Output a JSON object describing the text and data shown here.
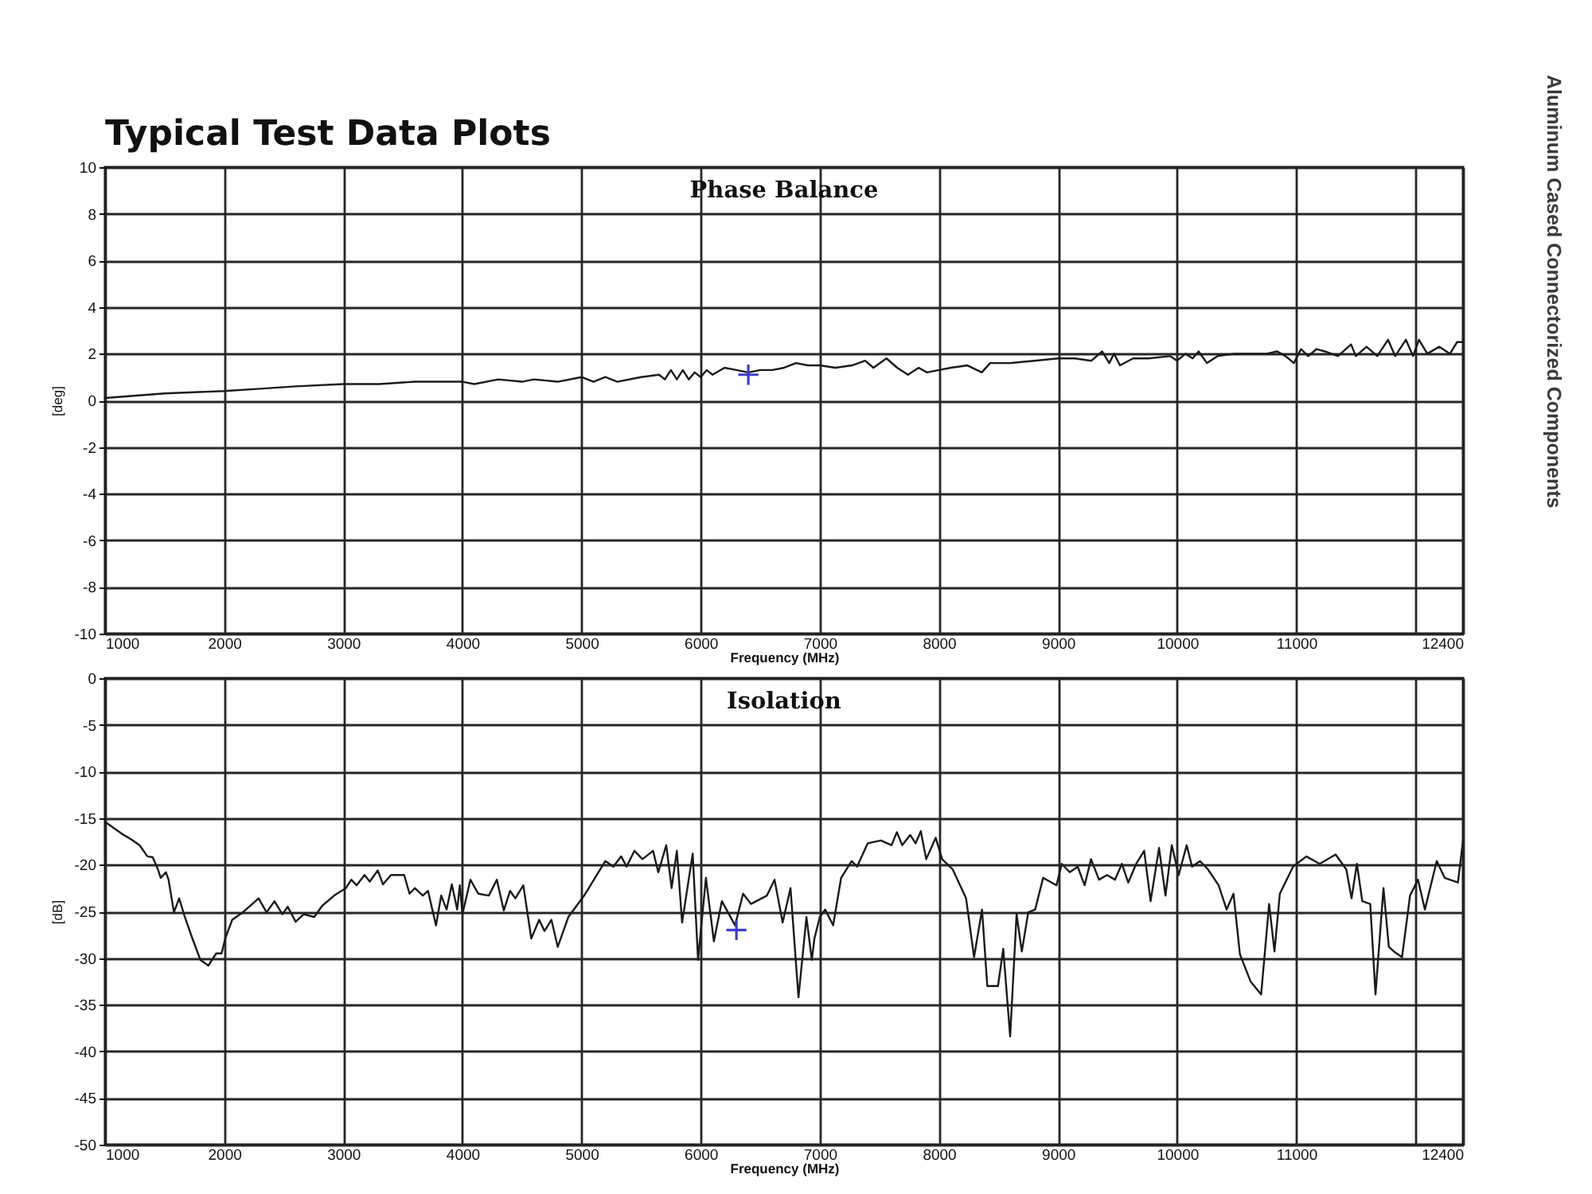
{
  "chart_data": [
    {
      "type": "line",
      "title": "Phase Balance",
      "xlabel": "Frequency (MHz)",
      "ylabel": "[deg]",
      "annotations": [
        "Typical Test Data Plots",
        "Aluminum Cased Connectorized Components"
      ],
      "xlim": [
        1000,
        12400
      ],
      "ylim": [
        -10,
        10
      ],
      "xticks": [
        1000,
        2000,
        3000,
        4000,
        5000,
        6000,
        7000,
        8000,
        9000,
        10000,
        11000,
        {
          "value": 12000,
          "label": null
        },
        12400
      ],
      "yticks": [
        -10,
        -8,
        -6,
        -4,
        -2,
        0,
        2,
        4,
        6,
        8,
        10
      ],
      "grid": true,
      "series": [
        {
          "color": "#1a1a1a",
          "x": [
            1000,
            1500,
            2000,
            2300,
            2600,
            3000,
            3300,
            3600,
            4000,
            4100,
            4300,
            4500,
            4600,
            4800,
            5000,
            5100,
            5200,
            5300,
            5500,
            5650,
            5700,
            5750,
            5800,
            5850,
            5900,
            5950,
            6000,
            6050,
            6100,
            6200,
            6300,
            6400,
            6500,
            6600,
            6700,
            6800,
            6900,
            7000,
            7130,
            7270,
            7380,
            7450,
            7560,
            7650,
            7740,
            7830,
            7900,
            8000,
            8100,
            8240,
            8360,
            8430,
            8600,
            8800,
            9000,
            9140,
            9280,
            9370,
            9430,
            9470,
            9520,
            9630,
            9760,
            9940,
            10000,
            10070,
            10130,
            10180,
            10250,
            10340,
            10480,
            10750,
            10840,
            10910,
            10980,
            11040,
            11100,
            11170,
            11240,
            11350,
            11460,
            11500,
            11590,
            11680,
            11770,
            11830,
            11920,
            11980,
            12030,
            12100,
            12200,
            12290,
            12350,
            12400
          ],
          "values": [
            0.1,
            0.3,
            0.4,
            0.5,
            0.6,
            0.7,
            0.7,
            0.8,
            0.8,
            0.7,
            0.9,
            0.8,
            0.9,
            0.8,
            1.0,
            0.8,
            1.0,
            0.8,
            1.0,
            1.1,
            0.9,
            1.3,
            0.9,
            1.3,
            0.9,
            1.2,
            1.0,
            1.3,
            1.1,
            1.4,
            1.3,
            1.2,
            1.3,
            1.3,
            1.4,
            1.6,
            1.5,
            1.5,
            1.4,
            1.5,
            1.7,
            1.4,
            1.8,
            1.4,
            1.1,
            1.4,
            1.2,
            1.3,
            1.4,
            1.5,
            1.2,
            1.6,
            1.6,
            1.7,
            1.8,
            1.8,
            1.7,
            2.1,
            1.6,
            2.0,
            1.5,
            1.8,
            1.8,
            1.9,
            1.7,
            2.0,
            1.8,
            2.1,
            1.6,
            1.9,
            2.0,
            2.0,
            2.1,
            1.9,
            1.6,
            2.2,
            1.9,
            2.2,
            2.1,
            1.9,
            2.4,
            1.9,
            2.3,
            1.9,
            2.6,
            1.9,
            2.6,
            1.9,
            2.6,
            2.0,
            2.3,
            2.0,
            2.5,
            2.5
          ]
        },
        {
          "type": "scatter",
          "marker": "cross",
          "color": "#3c3cd0",
          "x": [
            6400
          ],
          "values": [
            1.1
          ]
        }
      ]
    },
    {
      "type": "line",
      "title": "Isolation",
      "xlabel": "Frequency (MHz)",
      "ylabel": "[dB]",
      "xlim": [
        1000,
        12400
      ],
      "ylim": [
        -50,
        0
      ],
      "xticks": [
        1000,
        2000,
        3000,
        4000,
        5000,
        6000,
        7000,
        8000,
        9000,
        10000,
        11000,
        {
          "value": 12000,
          "label": null
        },
        12400
      ],
      "yticks": [
        -50,
        -45,
        -40,
        -35,
        -30,
        -25,
        -20,
        -15,
        -10,
        -5,
        0
      ],
      "grid": true,
      "series": [
        {
          "color": "#1a1a1a",
          "x": [
            1000,
            1156,
            1222,
            1289,
            1356,
            1400,
            1444,
            1467,
            1511,
            1533,
            1578,
            1622,
            1667,
            1733,
            1800,
            1867,
            1933,
            1978,
            2009,
            2067,
            2156,
            2289,
            2356,
            2422,
            2489,
            2533,
            2600,
            2667,
            2756,
            2822,
            2933,
            3022,
            3067,
            3111,
            3178,
            3222,
            3289,
            3333,
            3400,
            3511,
            3556,
            3600,
            3667,
            3711,
            3778,
            3822,
            3867,
            3911,
            3956,
            3978,
            4000,
            4067,
            4133,
            4222,
            4289,
            4347,
            4400,
            4444,
            4511,
            4578,
            4644,
            4689,
            4747,
            4800,
            4889,
            5022,
            5200,
            5267,
            5333,
            5378,
            5444,
            5511,
            5600,
            5644,
            5711,
            5756,
            5800,
            5844,
            5933,
            5978,
            6044,
            6111,
            6178,
            6289,
            6356,
            6422,
            6556,
            6620,
            6688,
            6754,
            6821,
            6888,
            6933,
            6955,
            7000,
            7045,
            7112,
            7179,
            7268,
            7313,
            7402,
            7513,
            7603,
            7647,
            7692,
            7759,
            7804,
            7848,
            7893,
            7973,
            8027,
            8116,
            8228,
            8295,
            8362,
            8406,
            8496,
            8540,
            8598,
            8652,
            8696,
            8750,
            8808,
            8875,
            8987,
            9031,
            9098,
            9165,
            9223,
            9277,
            9344,
            9411,
            9478,
            9536,
            9589,
            9656,
            9723,
            9777,
            9848,
            9902,
            9955,
            10013,
            10080,
            10125,
            10192,
            10259,
            10348,
            10415,
            10473,
            10527,
            10616,
            10705,
            10772,
            10817,
            10862,
            10973,
            11085,
            11196,
            11330,
            11420,
            11464,
            11509,
            11554,
            11621,
            11665,
            11732,
            11777,
            11821,
            11888,
            11955,
            12022,
            12080,
            12179,
            12246,
            12357,
            12400
          ],
          "values": [
            -15.4,
            -16.8,
            -17.3,
            -17.9,
            -19.1,
            -19.2,
            -20.5,
            -21.4,
            -20.8,
            -21.6,
            -25.1,
            -23.6,
            -25.5,
            -27.9,
            -30.2,
            -30.8,
            -29.5,
            -29.5,
            -27.9,
            -25.9,
            -25.1,
            -23.6,
            -25.1,
            -23.9,
            -25.3,
            -24.5,
            -26.1,
            -25.3,
            -25.6,
            -24.4,
            -23.2,
            -22.5,
            -21.6,
            -22.2,
            -21.1,
            -21.8,
            -20.6,
            -22.1,
            -21.1,
            -21.1,
            -23.1,
            -22.5,
            -23.3,
            -22.8,
            -26.5,
            -23.3,
            -24.8,
            -22.1,
            -24.8,
            -22.2,
            -25.3,
            -21.6,
            -23.1,
            -23.3,
            -21.6,
            -24.9,
            -22.8,
            -23.6,
            -22.2,
            -27.9,
            -25.9,
            -27.1,
            -25.9,
            -28.8,
            -25.6,
            -23.3,
            -19.6,
            -20.2,
            -19.1,
            -20.2,
            -18.5,
            -19.4,
            -18.5,
            -20.8,
            -17.9,
            -22.5,
            -18.5,
            -26.2,
            -18.8,
            -30.2,
            -21.4,
            -28.2,
            -23.9,
            -26.5,
            -23.1,
            -24.2,
            -23.3,
            -21.6,
            -26.2,
            -22.5,
            -34.2,
            -25.6,
            -30.2,
            -27.9,
            -25.6,
            -24.8,
            -26.5,
            -21.4,
            -19.6,
            -20.2,
            -17.7,
            -17.4,
            -17.9,
            -16.5,
            -17.9,
            -16.8,
            -17.7,
            -16.4,
            -19.4,
            -17.1,
            -19.4,
            -20.5,
            -23.6,
            -29.9,
            -24.8,
            -33.0,
            -33.0,
            -29.0,
            -38.4,
            -25.3,
            -29.3,
            -25.1,
            -24.8,
            -21.4,
            -22.2,
            -19.9,
            -20.8,
            -20.2,
            -22.2,
            -19.4,
            -21.6,
            -21.1,
            -21.6,
            -19.9,
            -21.9,
            -19.9,
            -18.5,
            -23.9,
            -18.2,
            -23.3,
            -17.9,
            -21.1,
            -17.9,
            -20.2,
            -19.6,
            -20.5,
            -22.2,
            -24.8,
            -23.1,
            -29.6,
            -32.5,
            -33.9,
            -24.2,
            -29.3,
            -23.1,
            -20.2,
            -19.1,
            -19.9,
            -18.9,
            -20.5,
            -23.6,
            -19.9,
            -23.9,
            -24.2,
            -33.9,
            -22.5,
            -28.8,
            -29.3,
            -29.9,
            -23.3,
            -21.6,
            -24.8,
            -19.6,
            -21.4,
            -21.9,
            -17.4
          ]
        },
        {
          "type": "scatter",
          "marker": "cross",
          "color": "#3c3cd0",
          "x": [
            6300
          ],
          "values": [
            -27
          ]
        }
      ]
    }
  ]
}
